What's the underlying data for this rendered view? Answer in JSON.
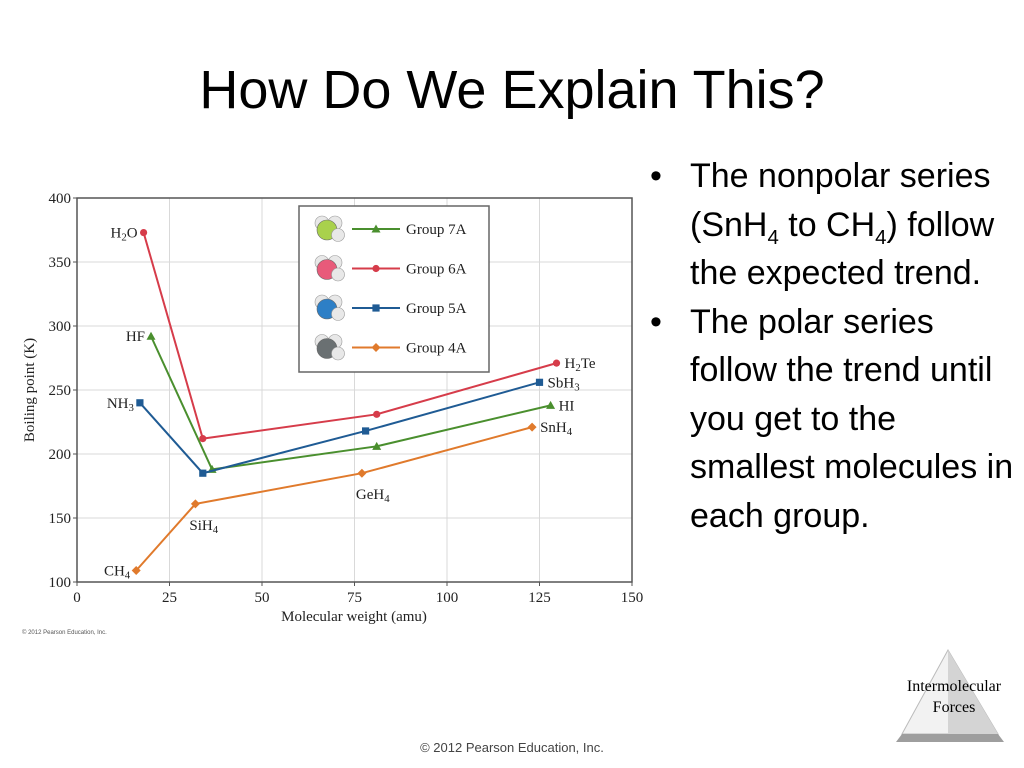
{
  "slide": {
    "title": "How Do We Explain This?",
    "bullets": [
      {
        "bullet": "•",
        "runs": [
          {
            "t": "The nonpolar series (SnH"
          },
          {
            "t": "4",
            "sub": true
          },
          {
            "t": " to CH"
          },
          {
            "t": "4",
            "sub": true
          },
          {
            "t": ") follow the expected trend."
          }
        ]
      },
      {
        "bullet": "•",
        "runs": [
          {
            "t": "The polar series follow the trend until you get to the smallest molecules in each group."
          }
        ]
      }
    ],
    "chart_copyright": "© 2012 Pearson Education, Inc.",
    "footer": "© 2012 Pearson Education, Inc.",
    "corner_label": [
      "Intermolecular",
      "Forces"
    ]
  },
  "chart_data": {
    "type": "line",
    "title": "",
    "xlabel": "Molecular weight (amu)",
    "ylabel": "Boiling point (K)",
    "xlim": [
      0,
      150
    ],
    "ylim": [
      100,
      400
    ],
    "xticks": [
      0,
      25,
      50,
      75,
      100,
      125,
      150
    ],
    "yticks": [
      100,
      150,
      200,
      250,
      300,
      350,
      400
    ],
    "grid": true,
    "legend_position": "top-center",
    "series": [
      {
        "name": "Group 7A",
        "color": "#4a8f2e",
        "marker": "triangle",
        "points": [
          {
            "x": 20,
            "y": 292,
            "label": [
              {
                "t": "HF"
              }
            ],
            "anchor": "left"
          },
          {
            "x": 36.5,
            "y": 188
          },
          {
            "x": 81,
            "y": 206
          },
          {
            "x": 128,
            "y": 238,
            "label": [
              {
                "t": "HI"
              }
            ],
            "anchor": "right"
          }
        ]
      },
      {
        "name": "Group 6A",
        "color": "#d63c4a",
        "marker": "circle",
        "points": [
          {
            "x": 18,
            "y": 373,
            "label": [
              {
                "t": "H"
              },
              {
                "t": "2",
                "sub": true
              },
              {
                "t": "O"
              }
            ],
            "anchor": "left"
          },
          {
            "x": 34,
            "y": 212
          },
          {
            "x": 81,
            "y": 231
          },
          {
            "x": 129.6,
            "y": 271,
            "label": [
              {
                "t": "H"
              },
              {
                "t": "2",
                "sub": true
              },
              {
                "t": "Te"
              }
            ],
            "anchor": "right"
          }
        ]
      },
      {
        "name": "Group 5A",
        "color": "#1f5b94",
        "marker": "square",
        "points": [
          {
            "x": 17,
            "y": 240,
            "label": [
              {
                "t": "NH"
              },
              {
                "t": "3",
                "sub": true
              }
            ],
            "anchor": "left"
          },
          {
            "x": 34,
            "y": 185
          },
          {
            "x": 78,
            "y": 218
          },
          {
            "x": 125,
            "y": 256,
            "label": [
              {
                "t": "SbH"
              },
              {
                "t": "3",
                "sub": true
              }
            ],
            "anchor": "right"
          }
        ]
      },
      {
        "name": "Group 4A",
        "color": "#e07a2c",
        "marker": "diamond",
        "points": [
          {
            "x": 16,
            "y": 109,
            "label": [
              {
                "t": "CH"
              },
              {
                "t": "4",
                "sub": true
              }
            ],
            "anchor": "left"
          },
          {
            "x": 32,
            "y": 161,
            "label": [
              {
                "t": "SiH"
              },
              {
                "t": "4",
                "sub": true
              }
            ],
            "anchor": "below"
          },
          {
            "x": 77,
            "y": 185,
            "label": [
              {
                "t": "GeH"
              },
              {
                "t": "4",
                "sub": true
              }
            ],
            "anchor": "below"
          },
          {
            "x": 123,
            "y": 221,
            "label": [
              {
                "t": "SnH"
              },
              {
                "t": "4",
                "sub": true
              }
            ],
            "anchor": "right"
          }
        ]
      }
    ],
    "legend_molecules": [
      {
        "group": "Group 7A",
        "center_color": "#a9d14c",
        "other_color": "#e8e8e8"
      },
      {
        "group": "Group 6A",
        "center_color": "#e85a7a",
        "other_color": "#e8e8e8"
      },
      {
        "group": "Group 5A",
        "center_color": "#2d7fc6",
        "other_color": "#e8e8e8"
      },
      {
        "group": "Group 4A",
        "center_color": "#6a7072",
        "other_color": "#e8e8e8"
      }
    ]
  },
  "style": {
    "plot_border": "#555555",
    "grid_color": "#d9d9d9",
    "corner_fill": "#d4d4d4",
    "corner_light": "#f2f2f2"
  }
}
